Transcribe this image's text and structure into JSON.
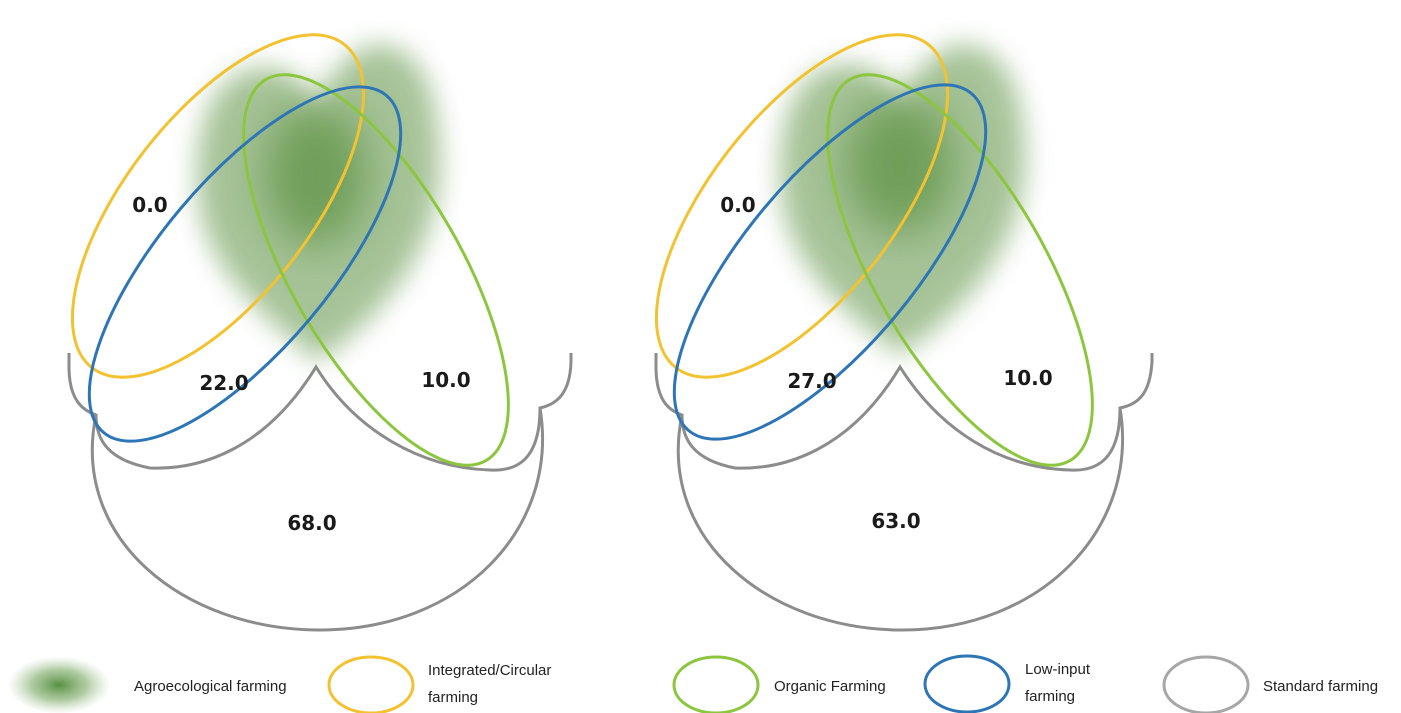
{
  "colors": {
    "agroecological": "#5f9345",
    "integrated": "#f2c230",
    "organic": "#8cc63f",
    "low_input": "#2e75b6",
    "standard": "#8c8c8c",
    "standard_legend": "#a6a6a6"
  },
  "diagrams": [
    {
      "integrated_only": "0.0",
      "low_input_overlap": "22.0",
      "organic_only": "10.0",
      "standard_only": "68.0"
    },
    {
      "integrated_only": "0.0",
      "low_input_overlap": "27.0",
      "organic_only": "10.0",
      "standard_only": "63.0"
    }
  ],
  "legend": {
    "agroecological": "Agroecological farming",
    "integrated_line1": "Integrated/Circular",
    "integrated_line2": "farming",
    "organic": "Organic Farming",
    "low_input_line1": "Low-input",
    "low_input_line2": "farming",
    "standard": "Standard farming"
  }
}
